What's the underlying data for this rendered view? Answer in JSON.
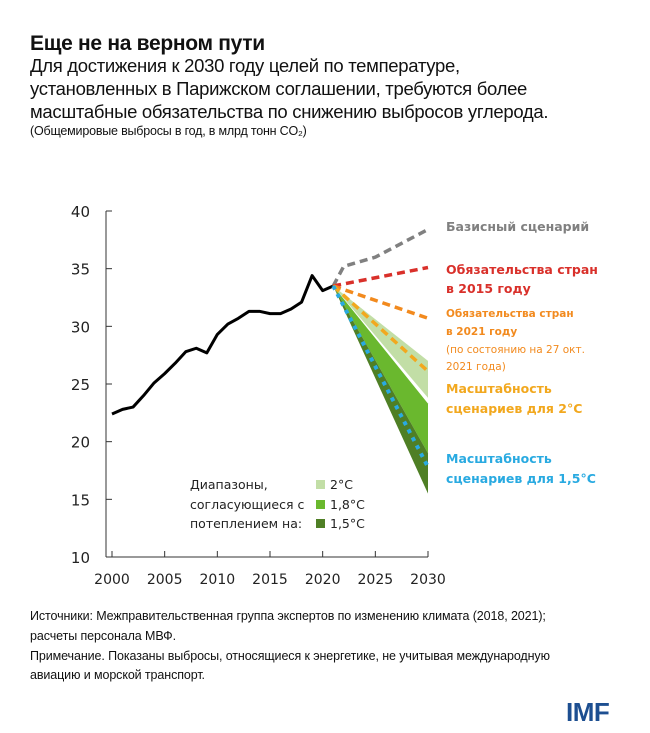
{
  "header": {
    "title": "Еще не на верном пути",
    "subtitle_lines": [
      "Для достижения к 2030 году целей по температуре,",
      "установленных в Парижском соглашении, требуются более",
      "масштабные обязательства по снижению выбросов углерода."
    ],
    "units": "(Общемировые выбросы в год, в млрд тонн CO₂)"
  },
  "footer": {
    "lines": [
      "Источники: Межправительственная группа экспертов по изменению климата (2018, 2021);",
      "расчеты персонала МВФ.",
      "Примечание. Показаны выбросы, относящиеся к энергетике, не учитывая международную",
      "авиацию и морской транспорт."
    ],
    "logo": "IMF"
  },
  "chart_data": {
    "type": "line",
    "xlim": [
      2000,
      2030
    ],
    "ylim": [
      10,
      40
    ],
    "xticks": [
      "2000",
      "2005",
      "2010",
      "2015",
      "2020",
      "2025",
      "2030"
    ],
    "yticks": [
      "10",
      "15",
      "20",
      "25",
      "30",
      "35",
      "40"
    ],
    "grid": false,
    "historical": {
      "color": "#000000",
      "x": [
        2000,
        2001,
        2002,
        2003,
        2004,
        2005,
        2006,
        2007,
        2008,
        2009,
        2010,
        2011,
        2012,
        2013,
        2014,
        2015,
        2016,
        2017,
        2018,
        2019,
        2020,
        2021
      ],
      "y": [
        22.4,
        22.8,
        23.0,
        24.0,
        25.1,
        25.9,
        26.8,
        27.8,
        28.1,
        27.7,
        29.3,
        30.2,
        30.7,
        31.3,
        31.3,
        31.1,
        31.1,
        31.5,
        32.1,
        34.4,
        33.1,
        33.5
      ]
    },
    "series": [
      {
        "name": "Базисный сценарий",
        "label_lines": [
          "Базисный сценарий"
        ],
        "color": "#808080",
        "x": [
          2021,
          2022,
          2025,
          2030
        ],
        "y": [
          33.5,
          35.2,
          36.0,
          38.4
        ]
      },
      {
        "name": "Обязательства стран в 2015 году",
        "label_lines": [
          "Обязательства стран",
          "в 2015 году"
        ],
        "color": "#d9302a",
        "x": [
          2021,
          2030
        ],
        "y": [
          33.5,
          35.1
        ]
      },
      {
        "name": "Обязательства стран в 2021 году (по состоянию на 27 окт. 2021 года)",
        "label_lines": [
          "Обязательства стран",
          "в 2021 году",
          "(по состоянию на 27 окт.",
          "2021 года)"
        ],
        "color": "#f28a1e",
        "x": [
          2021,
          2030
        ],
        "y": [
          33.5,
          30.7
        ]
      },
      {
        "name": "Масштабность сценариев для 2°C",
        "label_lines": [
          "Масштабность",
          "сценариев для 2°C"
        ],
        "color": "#f2a81e",
        "x": [
          2021,
          2030
        ],
        "y": [
          33.5,
          26.1
        ]
      },
      {
        "name": "Масштабность сценариев для 1,5°C",
        "label_lines": [
          "Масштабность",
          "сценариев для 1,5°C"
        ],
        "color": "#29aae1",
        "x": [
          2021,
          2030
        ],
        "y": [
          33.5,
          17.8
        ]
      }
    ],
    "bands": [
      {
        "name": "2°C",
        "color": "#c2dea6",
        "x": [
          2021,
          2030
        ],
        "low": [
          33.5,
          23.8
        ],
        "high": [
          33.5,
          27.0
        ]
      },
      {
        "name": "1,8°C",
        "color": "#6ab82e",
        "x": [
          2021,
          2030
        ],
        "low": [
          33.5,
          19.0
        ],
        "high": [
          33.5,
          23.3
        ]
      },
      {
        "name": "1,5°C",
        "color": "#4f7f25",
        "x": [
          2021,
          2030
        ],
        "low": [
          33.5,
          15.5
        ],
        "high": [
          33.5,
          19.0
        ]
      }
    ],
    "legend": {
      "title_lines": [
        "Диапазоны,",
        "согласующиеся с",
        "потеплением на:"
      ],
      "placement": "bottom-center"
    }
  }
}
